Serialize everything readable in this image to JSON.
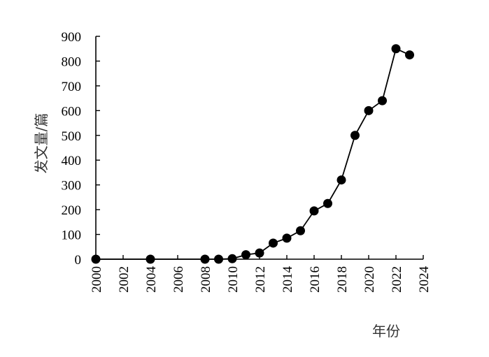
{
  "chart_data": {
    "type": "line",
    "xlabel": "年份",
    "ylabel": "发文量/篇",
    "xlim": [
      2000,
      2024
    ],
    "ylim": [
      0,
      900
    ],
    "x_ticks": [
      "2000",
      "2002",
      "2004",
      "2006",
      "2008",
      "2010",
      "2012",
      "2014",
      "2016",
      "2018",
      "2020",
      "2022",
      "2024"
    ],
    "y_ticks": [
      "0",
      "100",
      "200",
      "300",
      "400",
      "500",
      "600",
      "700",
      "800",
      "900"
    ],
    "grid": false,
    "series": [
      {
        "x": [
          2000,
          2004,
          2008,
          2009,
          2010,
          2011,
          2012,
          2013,
          2014,
          2015,
          2016,
          2017,
          2018,
          2019,
          2020,
          2021,
          2022,
          2023
        ],
        "y": [
          0,
          0,
          0,
          0,
          2,
          18,
          25,
          65,
          85,
          115,
          195,
          225,
          320,
          500,
          600,
          640,
          850,
          825
        ]
      }
    ],
    "colors": {
      "line": "#000000",
      "marker": "#000000",
      "axis": "#000000"
    }
  }
}
